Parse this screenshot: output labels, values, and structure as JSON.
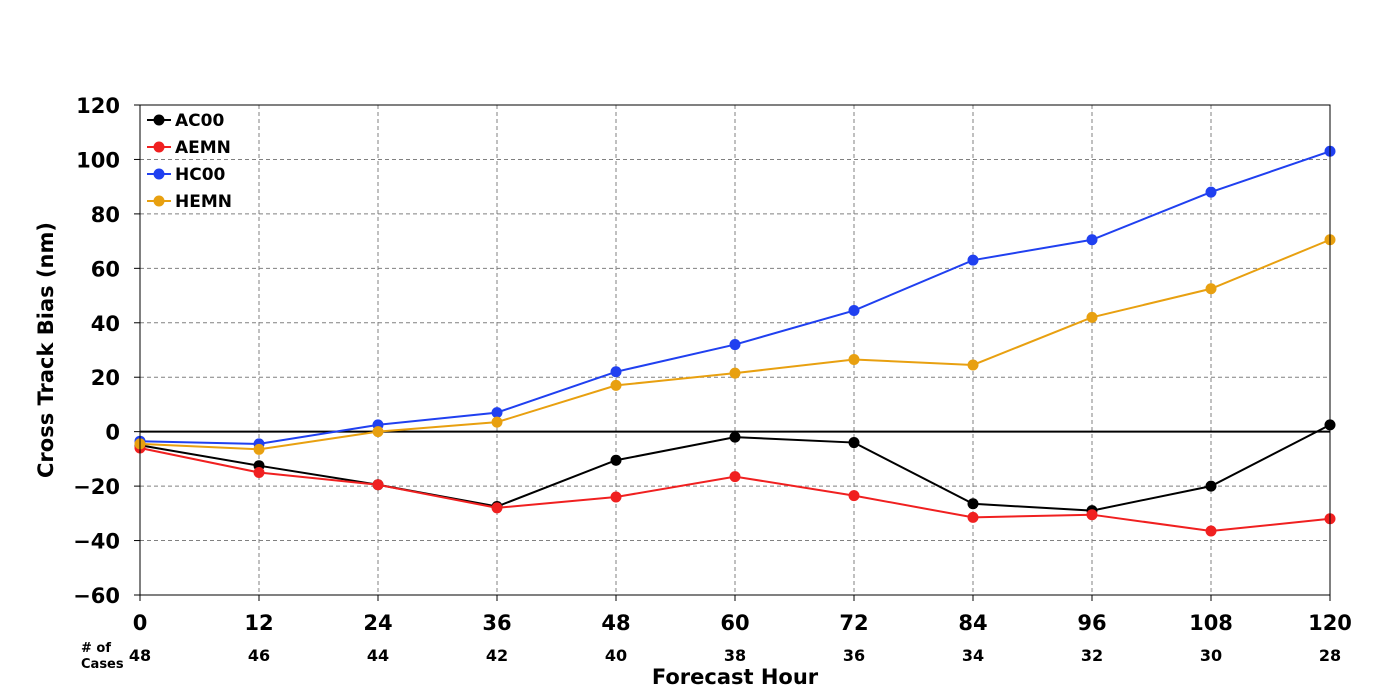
{
  "chart_data": {
    "type": "line",
    "title": "",
    "xlabel": "Forecast Hour",
    "ylabel": "Cross Track Bias (nm)",
    "x": [
      0,
      12,
      24,
      36,
      48,
      60,
      72,
      84,
      96,
      108,
      120
    ],
    "xlim": [
      0,
      120
    ],
    "ylim": [
      -60,
      120
    ],
    "yticks": [
      -60,
      -40,
      -20,
      0,
      20,
      40,
      60,
      80,
      100,
      120
    ],
    "ytick_labels": [
      "−60",
      "−40",
      "−20",
      "0",
      "20",
      "40",
      "60",
      "80",
      "100",
      "120"
    ],
    "grid": true,
    "zero_line": true,
    "legend_position": "top-left",
    "cases_label_line1": "# of",
    "cases_label_line2": "Cases",
    "cases": [
      48,
      46,
      44,
      42,
      40,
      38,
      36,
      34,
      32,
      30,
      28
    ],
    "series": [
      {
        "name": "AC00",
        "color": "#000000",
        "values": [
          -5,
          -12.5,
          -19.5,
          -27.5,
          -10.5,
          -2,
          -4,
          -26.5,
          -29,
          -20,
          2.5
        ]
      },
      {
        "name": "AEMN",
        "color": "#f02020",
        "values": [
          -6,
          -15,
          -19.5,
          -28,
          -24,
          -16.5,
          -23.5,
          -31.5,
          -30.5,
          -36.5,
          -32
        ]
      },
      {
        "name": "HC00",
        "color": "#2040f0",
        "values": [
          -3.5,
          -4.5,
          2.5,
          7,
          22,
          32,
          44.5,
          63,
          70.5,
          88,
          103
        ]
      },
      {
        "name": "HEMN",
        "color": "#e8a010",
        "values": [
          -4.5,
          -6.5,
          0,
          3.5,
          17,
          21.5,
          26.5,
          24.5,
          42,
          52.5,
          70.5
        ]
      }
    ]
  }
}
